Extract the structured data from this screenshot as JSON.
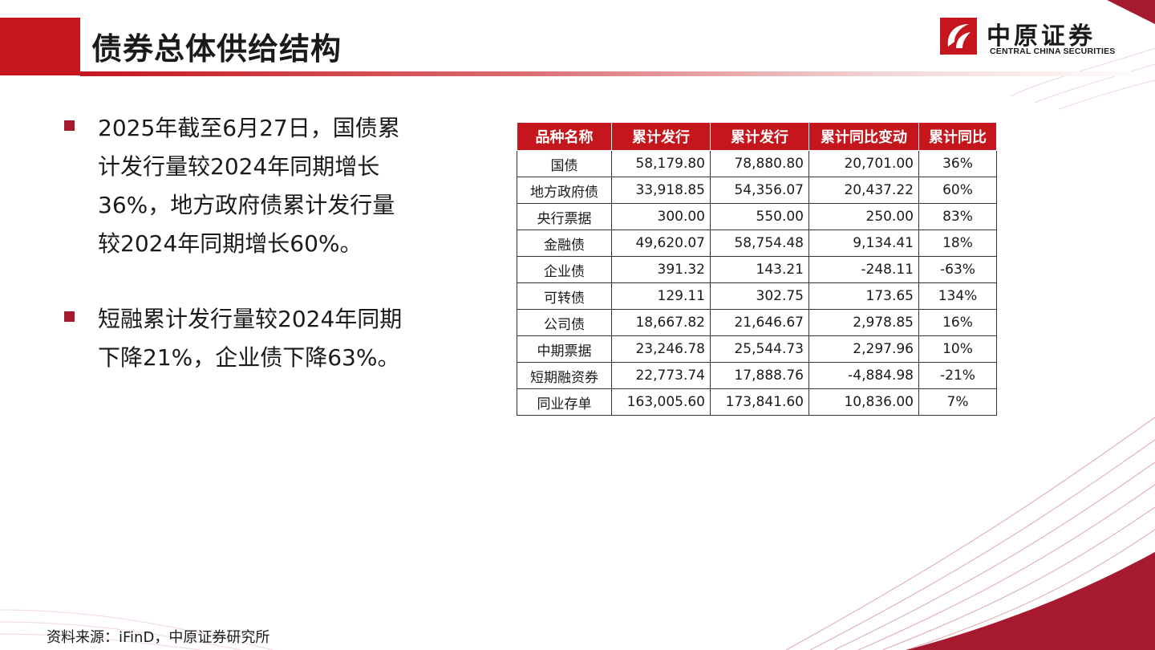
{
  "header": {
    "title": "债券总体供给结构",
    "logo_cn": "中原证券",
    "logo_en": "CENTRAL CHINA SECURITIES"
  },
  "colors": {
    "brand_red": "#c4161c",
    "bullet_red": "#a6192e"
  },
  "bullets": [
    "2025年截至6月27日，国债累计发行量较2024年同期增长36%，地方政府债累计发行量较2024年同期增长60%。",
    "短融累计发行量较2024年同期下降21%，企业债下降63%。"
  ],
  "table": {
    "headers": [
      "品种名称",
      "累计发行",
      "累计发行",
      "累计同比变动",
      "累计同比"
    ],
    "rows": [
      [
        "国债",
        "58,179.80",
        "78,880.80",
        "20,701.00",
        "36%"
      ],
      [
        "地方政府债",
        "33,918.85",
        "54,356.07",
        "20,437.22",
        "60%"
      ],
      [
        "央行票据",
        "300.00",
        "550.00",
        "250.00",
        "83%"
      ],
      [
        "金融债",
        "49,620.07",
        "58,754.48",
        "9,134.41",
        "18%"
      ],
      [
        "企业债",
        "391.32",
        "143.21",
        "-248.11",
        "-63%"
      ],
      [
        "可转债",
        "129.11",
        "302.75",
        "173.65",
        "134%"
      ],
      [
        "公司债",
        "18,667.82",
        "21,646.67",
        "2,978.85",
        "16%"
      ],
      [
        "中期票据",
        "23,246.78",
        "25,544.73",
        "2,297.96",
        "10%"
      ],
      [
        "短期融资券",
        "22,773.74",
        "17,888.76",
        "-4,884.98",
        "-21%"
      ],
      [
        "同业存单",
        "163,005.60",
        "173,841.60",
        "10,836.00",
        "7%"
      ]
    ]
  },
  "footer": {
    "source": "资料来源：iFinD，中原证券研究所"
  }
}
